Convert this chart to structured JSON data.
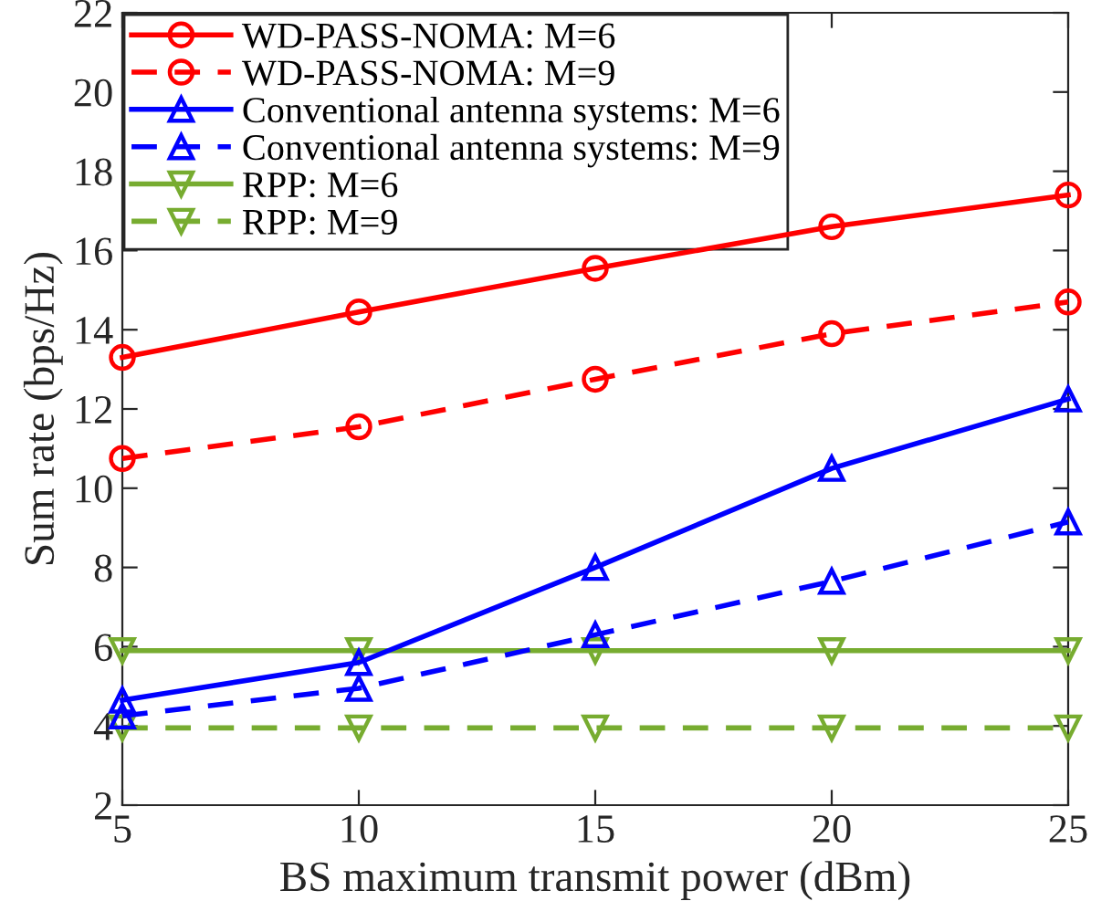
{
  "chart_data": {
    "type": "line",
    "xlabel": "BS maximum transmit power (dBm)",
    "ylabel": "Sum rate (bps/Hz)",
    "x": [
      5,
      10,
      15,
      20,
      25
    ],
    "xlim": [
      5,
      25
    ],
    "xticks": [
      5,
      10,
      15,
      20,
      25
    ],
    "ylim": [
      2,
      22
    ],
    "yticks": [
      2,
      4,
      6,
      8,
      10,
      12,
      14,
      16,
      18,
      20,
      22
    ],
    "grid": false,
    "legend": "top left",
    "series": [
      {
        "name": "WD-PASS-NOMA: M=6",
        "color": "#ff0000",
        "marker": "circle",
        "line_style": "solid",
        "values": [
          13.3,
          14.45,
          15.55,
          16.6,
          17.4
        ]
      },
      {
        "name": "WD-PASS-NOMA: M=9",
        "color": "#ff0000",
        "marker": "circle",
        "line_style": "dashed",
        "values": [
          10.75,
          11.55,
          12.75,
          13.9,
          14.7
        ]
      },
      {
        "name": "Conventional antenna systems: M=6",
        "color": "#0000ff",
        "marker": "triangle",
        "line_style": "solid",
        "values": [
          4.65,
          5.6,
          8.0,
          10.5,
          12.25
        ]
      },
      {
        "name": "Conventional antenna systems: M=9",
        "color": "#0000ff",
        "marker": "triangle",
        "line_style": "dashed",
        "values": [
          4.25,
          4.95,
          6.3,
          7.65,
          9.15
        ]
      },
      {
        "name": "RPP: M=6",
        "color": "#77ac30",
        "marker": "triangle_down",
        "line_style": "solid",
        "values": [
          5.9,
          5.9,
          5.9,
          5.9,
          5.9
        ]
      },
      {
        "name": "RPP: M=9",
        "color": "#77ac30",
        "marker": "triangle_down",
        "line_style": "dashed",
        "values": [
          3.95,
          3.95,
          3.95,
          3.95,
          3.95
        ]
      }
    ]
  }
}
